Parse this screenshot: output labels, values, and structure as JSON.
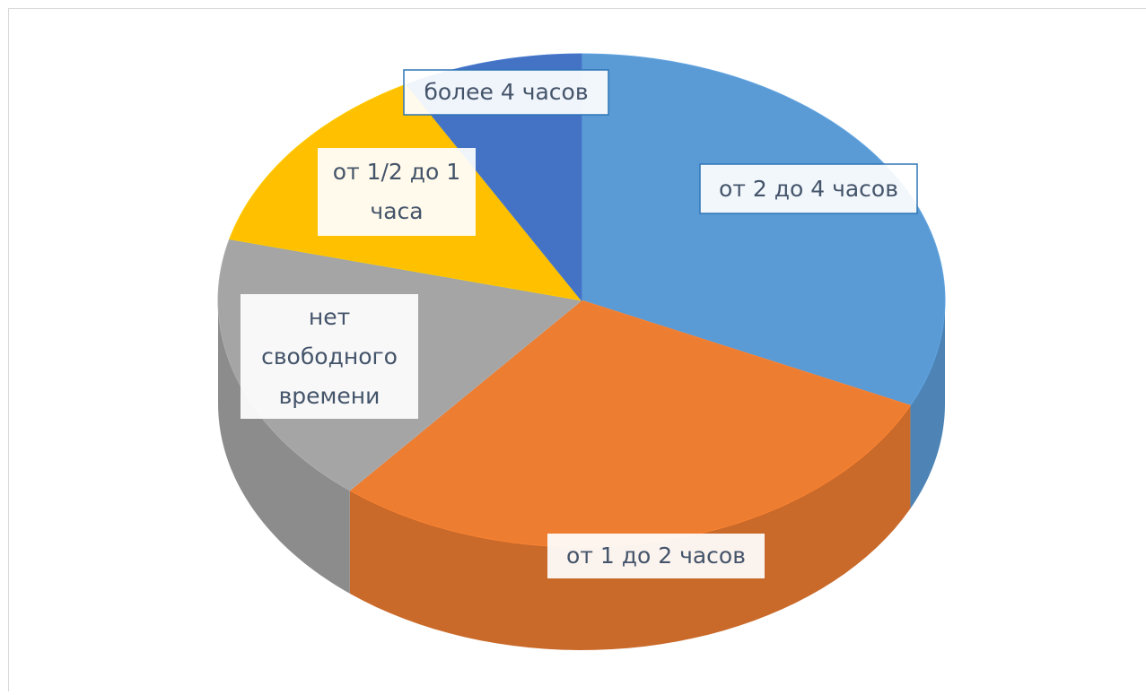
{
  "chart_data": {
    "type": "pie",
    "categories": [
      "от 2 до 4 часов",
      "от 1 до 2 часов",
      "нет свободного времени",
      "от 1/2 до 1 часа",
      "более 4 часов"
    ],
    "values": [
      32,
      29,
      18,
      13,
      8
    ],
    "colors": [
      "#5b9bd5",
      "#ed7d31",
      "#a5a5a5",
      "#ffc000",
      "#4472c4"
    ]
  }
}
